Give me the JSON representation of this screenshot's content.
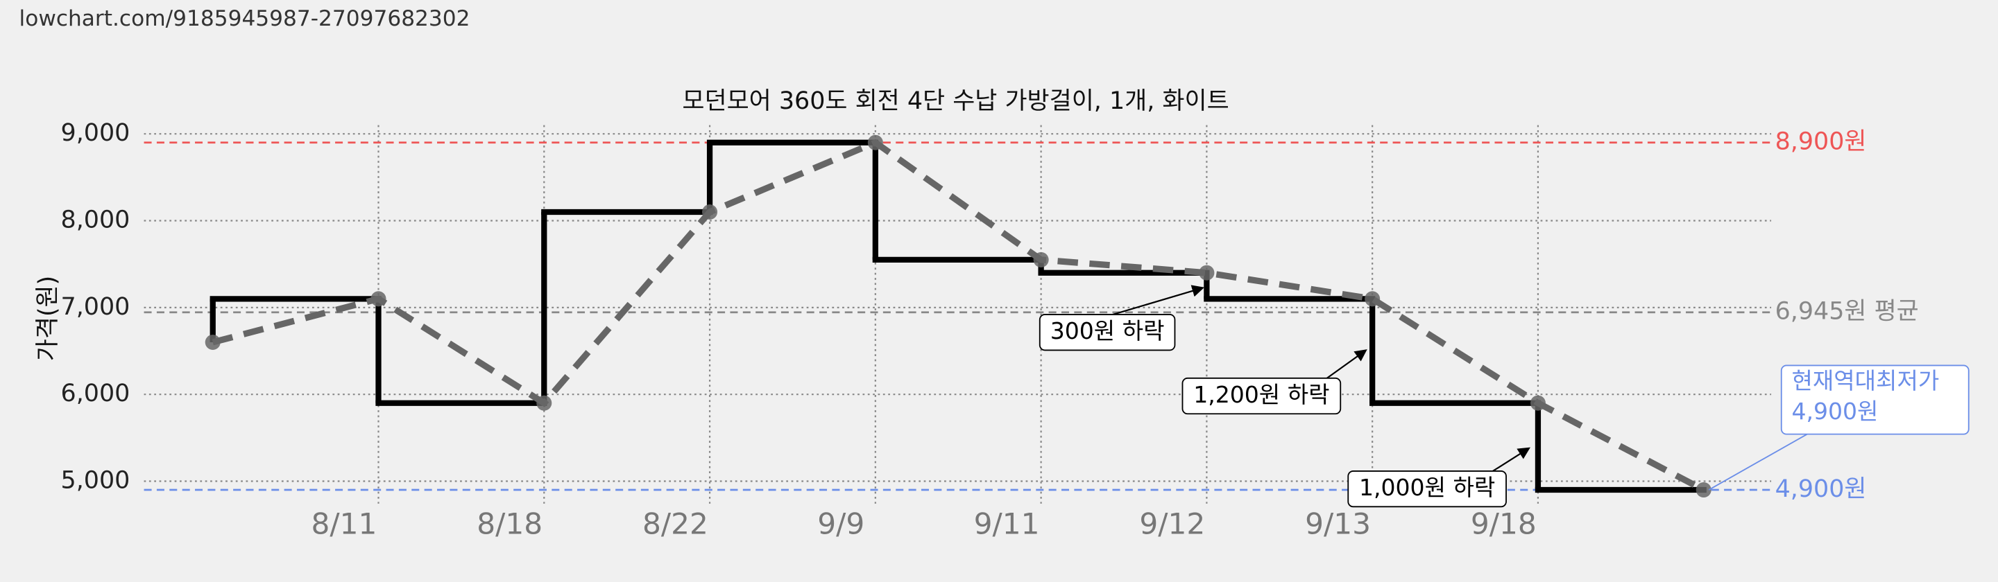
{
  "url": "lowchart.com/9185945987-27097682302",
  "chart_data": {
    "type": "line",
    "title": "모던모어 360도 회전 4단 수납 가방걸이, 1개, 화이트",
    "y_label": "가격(원)",
    "categories": [
      null,
      "8/11",
      "8/18",
      "8/22",
      "9/9",
      "9/11",
      "9/12",
      "9/13",
      "9/18",
      null
    ],
    "series": [
      {
        "values": [
          6600,
          7100,
          5900,
          8100,
          8900,
          7550,
          7400,
          7100,
          5900,
          4900
        ],
        "color": "#000000",
        "trend_color": "#666666"
      }
    ],
    "ylim": [
      4800,
      9100
    ],
    "yticks": [
      {
        "value": 5000,
        "label": "5,000"
      },
      {
        "value": 6000,
        "label": "6,000"
      },
      {
        "value": 7000,
        "label": "7,000"
      },
      {
        "value": 8000,
        "label": "8,000"
      },
      {
        "value": 9000,
        "label": "9,000"
      }
    ],
    "grid": true,
    "reference_lines": [
      {
        "value": 8900,
        "label": "8,900원",
        "color": "#ee5555"
      },
      {
        "value": 6945,
        "label": "6,945원 평균",
        "color": "#888888"
      },
      {
        "value": 4900,
        "label": "4,900원",
        "color": "#6b8ee8"
      }
    ],
    "callout": {
      "lines": [
        "현재역대최저가",
        "4,900원"
      ],
      "color": "#6b8ee8"
    },
    "annotations": [
      "300원 하락",
      "1,200원 하락",
      "1,000원 하락"
    ]
  }
}
